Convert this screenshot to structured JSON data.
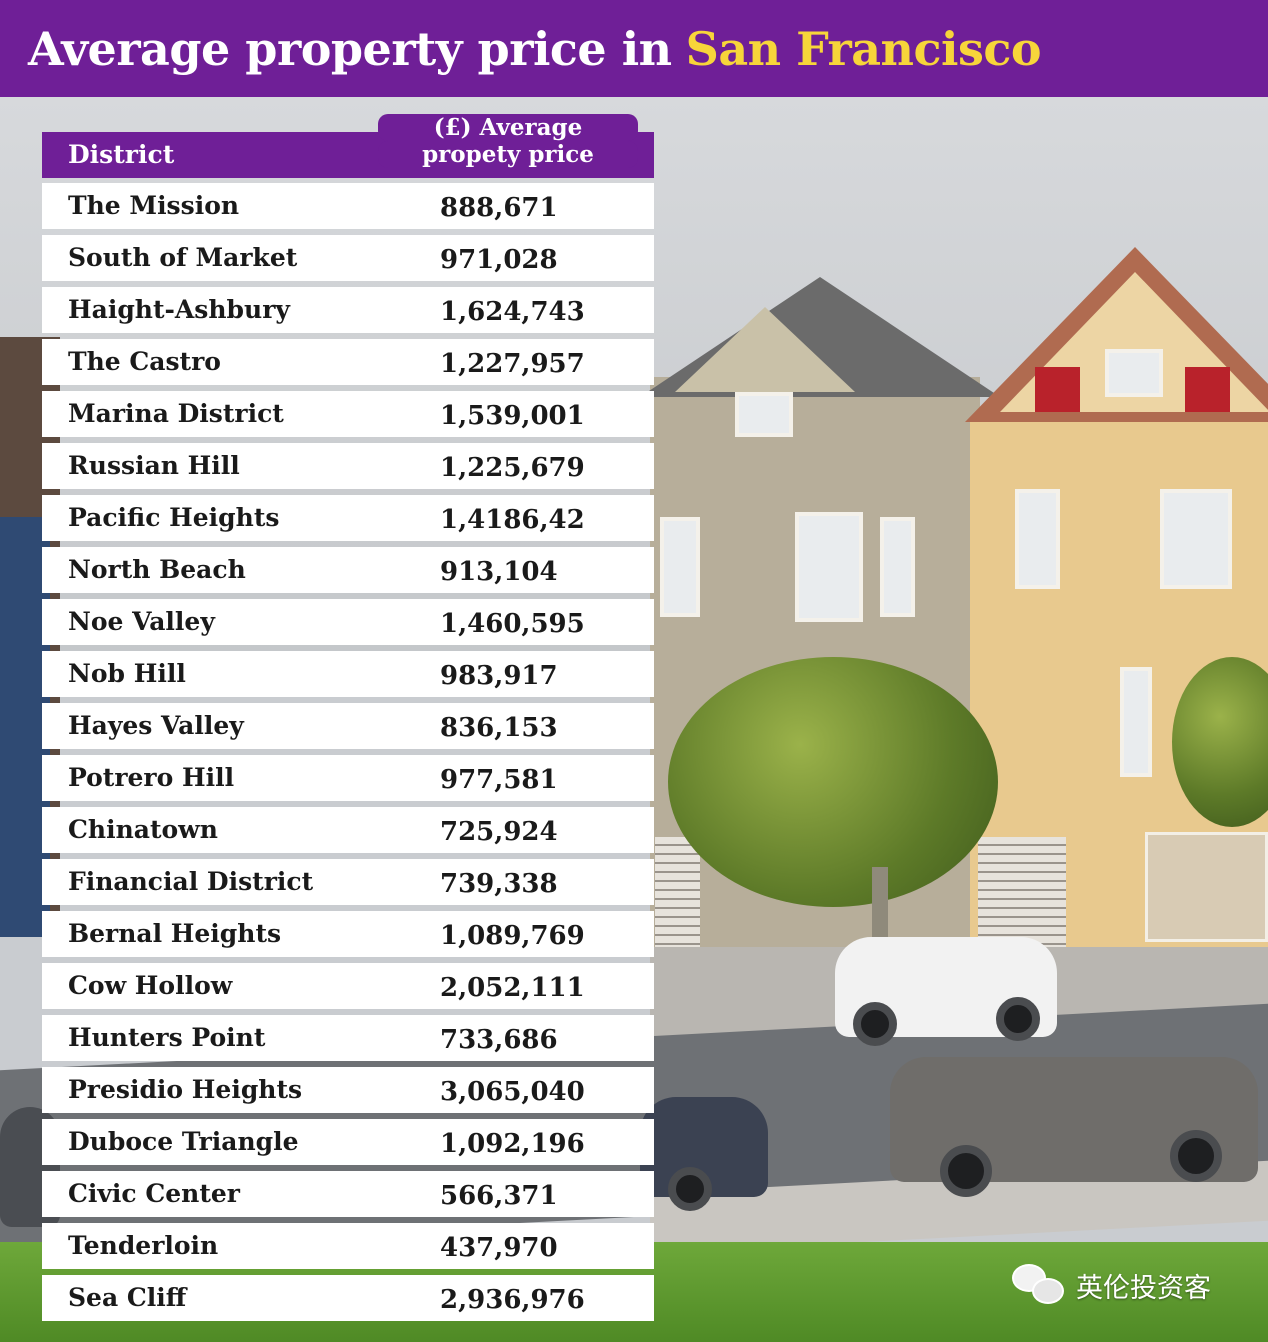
{
  "header": {
    "title_part1": "Average property price in",
    "title_part2": "San Francisco"
  },
  "chart_data": {
    "type": "table",
    "title": "Average property price in San Francisco",
    "columns": [
      "District",
      "(£) Average propety price"
    ],
    "column_header_price_line1": "(£) Average",
    "column_header_price_line2": "propety price",
    "rows": [
      {
        "district": "The Mission",
        "price": "888,671"
      },
      {
        "district": "South of Market",
        "price": "971,028"
      },
      {
        "district": "Haight-Ashbury",
        "price": "1,624,743"
      },
      {
        "district": "The Castro",
        "price": "1,227,957"
      },
      {
        "district": "Marina District",
        "price": "1,539,001"
      },
      {
        "district": "Russian Hill",
        "price": "1,225,679"
      },
      {
        "district": "Pacific Heights",
        "price": "1,4186,42"
      },
      {
        "district": "North Beach",
        "price": "913,104"
      },
      {
        "district": "Noe Valley",
        "price": "1,460,595"
      },
      {
        "district": "Nob Hill",
        "price": "983,917"
      },
      {
        "district": "Hayes Valley",
        "price": "836,153"
      },
      {
        "district": "Potrero Hill",
        "price": "977,581"
      },
      {
        "district": "Chinatown",
        "price": "725,924"
      },
      {
        "district": "Financial District",
        "price": "739,338"
      },
      {
        "district": "Bernal Heights",
        "price": "1,089,769"
      },
      {
        "district": "Cow Hollow",
        "price": "2,052,111"
      },
      {
        "district": "Hunters Point",
        "price": "733,686"
      },
      {
        "district": "Presidio Heights",
        "price": "3,065,040"
      },
      {
        "district": "Duboce Triangle",
        "price": "1,092,196"
      },
      {
        "district": "Civic Center",
        "price": "566,371"
      },
      {
        "district": "Tenderloin",
        "price": "437,970"
      },
      {
        "district": "Sea Cliff",
        "price": "2,936,976"
      }
    ]
  },
  "watermark": {
    "text": "英伦投资客",
    "icon": "wechat-icon"
  },
  "colors": {
    "header_bg": "#6f1f97",
    "title_accent": "#f7d53a",
    "row_bg": "#ffffff"
  }
}
